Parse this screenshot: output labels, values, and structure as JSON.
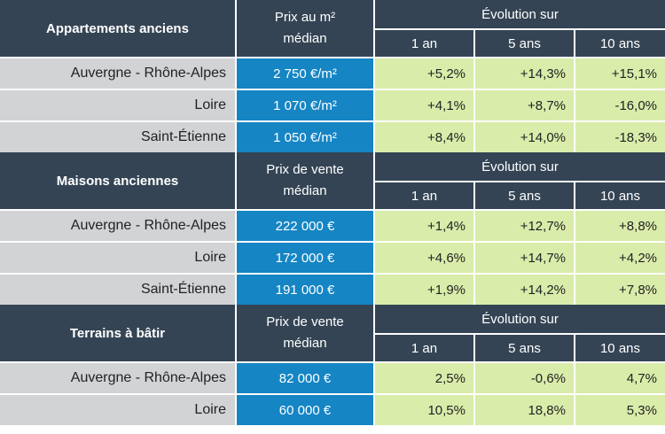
{
  "sections": [
    {
      "title": "Appartements anciens",
      "price_header": "Prix au m² médian",
      "evolution_header": "Évolution sur",
      "periods": [
        "1 an",
        "5 ans",
        "10 ans"
      ],
      "rows": [
        {
          "name": "Auvergne - Rhône-Alpes",
          "price": "2 750 €/m²",
          "changes": [
            "+5,2%",
            "+14,3%",
            "+15,1%"
          ]
        },
        {
          "name": "Loire",
          "price": "1 070 €/m²",
          "changes": [
            "+4,1%",
            "+8,7%",
            "-16,0%"
          ]
        },
        {
          "name": "Saint-Étienne",
          "price": "1 050 €/m²",
          "changes": [
            "+8,4%",
            "+14,0%",
            "-18,3%"
          ]
        }
      ]
    },
    {
      "title": "Maisons anciennes",
      "price_header": "Prix de vente médian",
      "evolution_header": "Évolution sur",
      "periods": [
        "1 an",
        "5 ans",
        "10 ans"
      ],
      "rows": [
        {
          "name": "Auvergne - Rhône-Alpes",
          "price": "222 000 €",
          "changes": [
            "+1,4%",
            "+12,7%",
            "+8,8%"
          ]
        },
        {
          "name": "Loire",
          "price": "172 000 €",
          "changes": [
            "+4,6%",
            "+14,7%",
            "+4,2%"
          ]
        },
        {
          "name": "Saint-Étienne",
          "price": "191 000 €",
          "changes": [
            "+1,9%",
            "+14,2%",
            "+7,8%"
          ]
        }
      ]
    },
    {
      "title": "Terrains à bâtir",
      "price_header": "Prix de vente médian",
      "evolution_header": "Évolution sur",
      "periods": [
        "1 an",
        "5 ans",
        "10 ans"
      ],
      "rows": [
        {
          "name": "Auvergne - Rhône-Alpes",
          "price": "82 000 €",
          "changes": [
            "2,5%",
            "-0,6%",
            "4,7%"
          ]
        },
        {
          "name": "Loire",
          "price": "60 000 €",
          "changes": [
            "10,5%",
            "18,8%",
            "5,3%"
          ]
        }
      ]
    }
  ]
}
